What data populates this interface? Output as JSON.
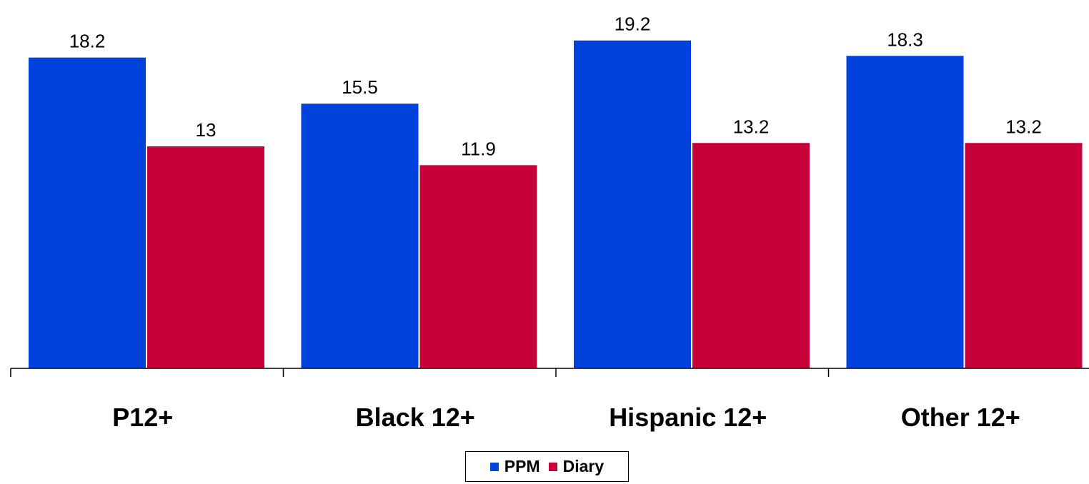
{
  "chart_data": {
    "type": "bar",
    "categories": [
      "P12+",
      "Black 12+",
      "Hispanic 12+",
      "Other 12+"
    ],
    "series": [
      {
        "name": "PPM",
        "values": [
          18.2,
          15.5,
          19.2,
          18.3
        ],
        "color": "#0242dc"
      },
      {
        "name": "Diary",
        "values": [
          13,
          11.9,
          13.2,
          13.2
        ],
        "color": "#c8003a"
      }
    ],
    "value_labels": [
      [
        "18.2",
        "15.5",
        "19.2",
        "18.3"
      ],
      [
        "13",
        "11.9",
        "13.2",
        "13.2"
      ]
    ],
    "title": "",
    "xlabel": "",
    "ylabel": "",
    "ylim": [
      0,
      20
    ],
    "grid": false,
    "legend_position": "bottom"
  }
}
